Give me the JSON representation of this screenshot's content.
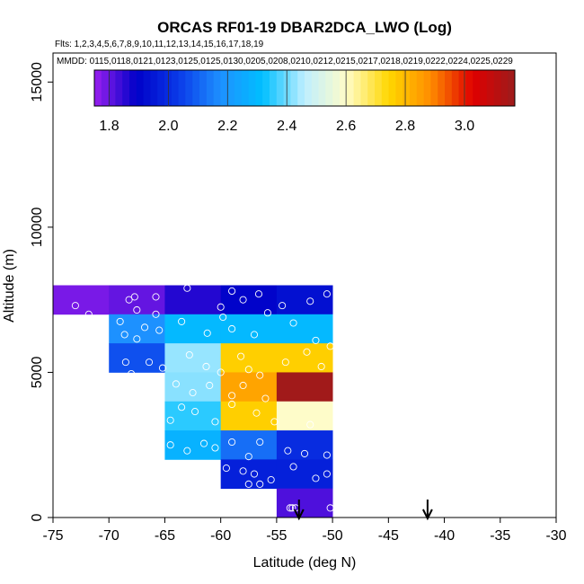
{
  "chart_data": {
    "type": "heatmap",
    "title": "ORCAS RF01-19 DBAR2DCA_LWO (Log)",
    "flights_text": "Flts: 1,2,3,4,5,6,7,8,9,10,11,12,13,14,15,16,17,18,19",
    "dates_text": "MMDD: 0115,0118,0121,0123,0125,0125,0130,0205,0208,0210,0212,0215,0217,0218,0219,0222,0224,0225,0229",
    "xlabel": "Latitude (deg N)",
    "ylabel": "Altitude (m)",
    "xlim": [
      -75,
      -30
    ],
    "ylim": [
      0,
      16000
    ],
    "xticks": [
      -75,
      -70,
      -65,
      -60,
      -55,
      -50,
      -45,
      -40,
      -35,
      -30
    ],
    "yticks": [
      0,
      5000,
      10000,
      15000
    ],
    "colorbar": {
      "min": 1.75,
      "max": 3.17,
      "ticks": [
        1.8,
        2.0,
        2.2,
        2.4,
        2.6,
        2.8,
        3.0
      ],
      "colors": [
        "#9a20ef",
        "#0000c8",
        "#0a3ae8",
        "#1e90ff",
        "#00bfff",
        "#bfefff",
        "#fffcc8",
        "#ffd700",
        "#ff8c00",
        "#e00000",
        "#9c1c1c"
      ]
    },
    "cell_width_deg": 5,
    "cell_height_m": 1000,
    "cells": [
      {
        "lat": -75,
        "alt": 7000,
        "value": 1.78
      },
      {
        "lat": -70,
        "alt": 7000,
        "value": 1.8
      },
      {
        "lat": -65,
        "alt": 7000,
        "value": 1.86
      },
      {
        "lat": -60,
        "alt": 7000,
        "value": 1.9
      },
      {
        "lat": -55,
        "alt": 7000,
        "value": 1.93
      },
      {
        "lat": -70,
        "alt": 6000,
        "value": 2.18
      },
      {
        "lat": -65,
        "alt": 6000,
        "value": 2.3
      },
      {
        "lat": -60,
        "alt": 6000,
        "value": 2.3
      },
      {
        "lat": -55,
        "alt": 6000,
        "value": 2.3
      },
      {
        "lat": -70,
        "alt": 5000,
        "value": 2.07
      },
      {
        "lat": -65,
        "alt": 5000,
        "value": 2.43
      },
      {
        "lat": -60,
        "alt": 5000,
        "value": 2.76
      },
      {
        "lat": -55,
        "alt": 5000,
        "value": 2.76
      },
      {
        "lat": -65,
        "alt": 4000,
        "value": 2.42
      },
      {
        "lat": -60,
        "alt": 4000,
        "value": 2.84
      },
      {
        "lat": -55,
        "alt": 4000,
        "value": 3.16
      },
      {
        "lat": -65,
        "alt": 3000,
        "value": 2.35
      },
      {
        "lat": -60,
        "alt": 3000,
        "value": 2.76
      },
      {
        "lat": -55,
        "alt": 3000,
        "value": 2.6
      },
      {
        "lat": -65,
        "alt": 2000,
        "value": 2.28
      },
      {
        "lat": -60,
        "alt": 2000,
        "value": 2.12
      },
      {
        "lat": -55,
        "alt": 2000,
        "value": 2.0
      },
      {
        "lat": -60,
        "alt": 1000,
        "value": 1.97
      },
      {
        "lat": -55,
        "alt": 1000,
        "value": 1.97
      },
      {
        "lat": -55,
        "alt": 0,
        "value": 1.82
      }
    ],
    "arrows_lat": [
      -53,
      -41.5
    ],
    "samples": [
      [
        -73.0,
        7300
      ],
      [
        -71.8,
        7000
      ],
      [
        -68.2,
        7500
      ],
      [
        -67.7,
        7600
      ],
      [
        -65.8,
        7600
      ],
      [
        -67.5,
        7150
      ],
      [
        -65.8,
        7000
      ],
      [
        -63.0,
        7900
      ],
      [
        -60.0,
        7250
      ],
      [
        -59.8,
        6900
      ],
      [
        -59.0,
        7800
      ],
      [
        -58.0,
        7500
      ],
      [
        -56.6,
        7700
      ],
      [
        -55.8,
        7050
      ],
      [
        -54.5,
        7300
      ],
      [
        -52.0,
        7450
      ],
      [
        -50.5,
        7700
      ],
      [
        -69.0,
        6750
      ],
      [
        -68.6,
        6300
      ],
      [
        -67.5,
        6150
      ],
      [
        -66.8,
        6550
      ],
      [
        -65.5,
        6450
      ],
      [
        -63.5,
        6750
      ],
      [
        -61.2,
        6350
      ],
      [
        -59.0,
        6500
      ],
      [
        -57.0,
        6300
      ],
      [
        -53.5,
        6700
      ],
      [
        -51.5,
        6100
      ],
      [
        -50.2,
        5900
      ],
      [
        -68.5,
        5350
      ],
      [
        -66.4,
        5350
      ],
      [
        -65.2,
        5150
      ],
      [
        -62.8,
        5600
      ],
      [
        -61.3,
        5200
      ],
      [
        -60.0,
        5000
      ],
      [
        -58.2,
        5550
      ],
      [
        -57.5,
        5100
      ],
      [
        -56.5,
        4900
      ],
      [
        -54.2,
        5350
      ],
      [
        -52.3,
        5700
      ],
      [
        -51.0,
        5200
      ],
      [
        -68.0,
        4950
      ],
      [
        -64.0,
        4600
      ],
      [
        -62.5,
        4300
      ],
      [
        -61.0,
        4550
      ],
      [
        -59.0,
        4200
      ],
      [
        -58.0,
        4550
      ],
      [
        -56.0,
        4100
      ],
      [
        -62.3,
        3650
      ],
      [
        -60.5,
        3300
      ],
      [
        -59.0,
        3900
      ],
      [
        -56.8,
        3600
      ],
      [
        -55.2,
        3300
      ],
      [
        -52.0,
        3200
      ],
      [
        -64.5,
        3350
      ],
      [
        -63.5,
        3800
      ],
      [
        -64.5,
        2500
      ],
      [
        -63.0,
        2300
      ],
      [
        -61.5,
        2550
      ],
      [
        -60.5,
        2400
      ],
      [
        -59.0,
        2600
      ],
      [
        -57.5,
        2100
      ],
      [
        -56.5,
        2600
      ],
      [
        -54.0,
        2300
      ],
      [
        -52.5,
        2200
      ],
      [
        -50.5,
        2150
      ],
      [
        -59.5,
        1700
      ],
      [
        -58.0,
        1600
      ],
      [
        -57.0,
        1500
      ],
      [
        -55.5,
        1300
      ],
      [
        -53.5,
        1750
      ],
      [
        -51.5,
        1350
      ],
      [
        -50.5,
        1500
      ],
      [
        -57.5,
        1150
      ],
      [
        -56.5,
        1150
      ],
      [
        -53.8,
        330
      ],
      [
        -53.6,
        330
      ],
      [
        -53.3,
        330
      ],
      [
        -50.2,
        330
      ]
    ]
  }
}
